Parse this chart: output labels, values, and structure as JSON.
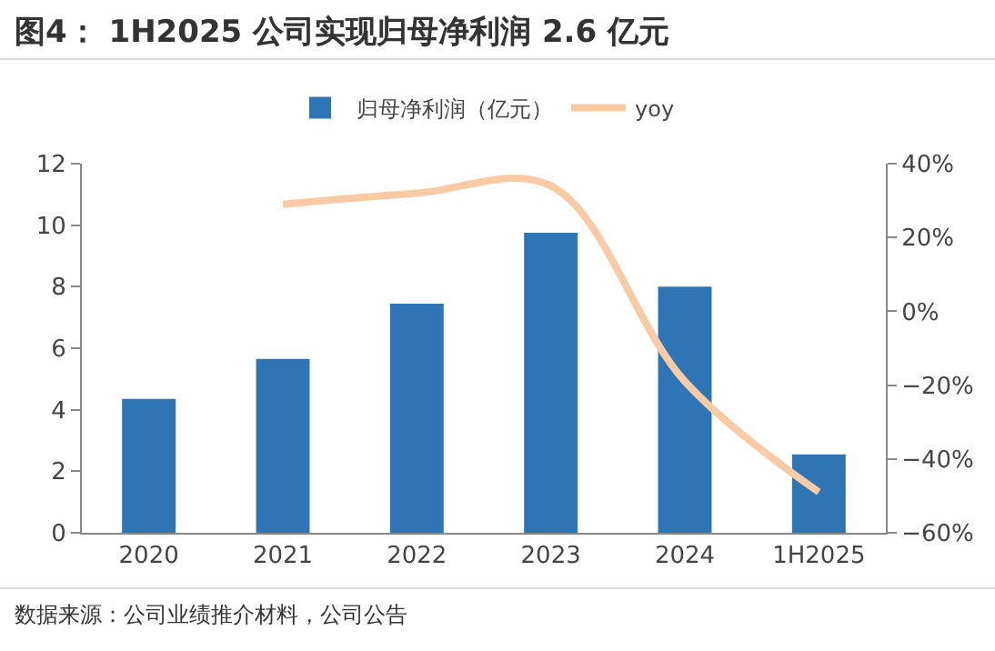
{
  "chart_data": {
    "type": "bar",
    "title": "图4： 1H2025 公司实现归母净利润 2.6 亿元",
    "categories": [
      "2020",
      "2021",
      "2022",
      "2023",
      "2024",
      "1H2025"
    ],
    "series": [
      {
        "name": "归母净利润（亿元）",
        "color": "#2e75b6",
        "values": [
          4.35,
          5.65,
          7.45,
          9.75,
          8.0,
          2.55
        ]
      },
      {
        "name": "yoy",
        "type": "line",
        "axis": "y2",
        "color": "#f8cba5",
        "values": [
          null,
          29,
          32,
          34,
          -19,
          -49
        ]
      }
    ],
    "ylim": [
      0,
      12
    ],
    "yticks": [
      0,
      2,
      4,
      6,
      8,
      10,
      12
    ],
    "y2lim": [
      -60,
      40
    ],
    "y2ticks": [
      {
        "value": -60,
        "label": "−60%"
      },
      {
        "value": -40,
        "label": "−40%"
      },
      {
        "value": -20,
        "label": "−20%"
      },
      {
        "value": 0,
        "label": "0%"
      },
      {
        "value": 20,
        "label": "20%"
      },
      {
        "value": 40,
        "label": "40%"
      }
    ],
    "legend": "top",
    "grid": false,
    "annotations": [
      "数据来源：公司业绩推介材料，公司公告"
    ]
  }
}
